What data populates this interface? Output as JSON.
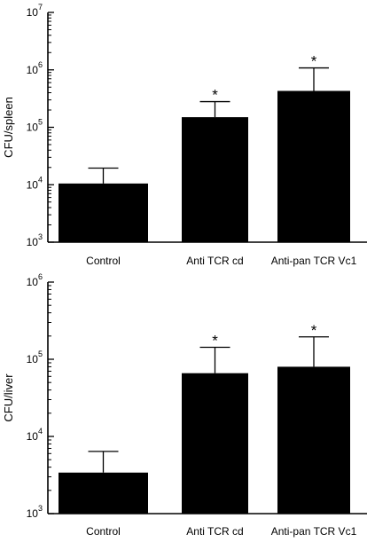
{
  "chart_data": [
    {
      "type": "bar",
      "title": "",
      "xlabel": "",
      "ylabel": "CFU/spleen",
      "yscale": "log",
      "ylim": [
        1000,
        10000000
      ],
      "yticks": [
        {
          "value": 1000,
          "base": "10",
          "exp": "3"
        },
        {
          "value": 10000,
          "base": "10",
          "exp": "4"
        },
        {
          "value": 100000,
          "base": "10",
          "exp": "5"
        },
        {
          "value": 1000000,
          "base": "10",
          "exp": "6"
        },
        {
          "value": 10000000,
          "base": "10",
          "exp": "7"
        }
      ],
      "categories": [
        "Control",
        "Anti TCR cd",
        "Anti-pan TCR Vc1"
      ],
      "values": [
        10500,
        150000,
        430000
      ],
      "error_upper": [
        19500,
        280000,
        1080000
      ],
      "significance": [
        "",
        "*",
        "*"
      ],
      "bar_color": "#000000",
      "grid": false
    },
    {
      "type": "bar",
      "title": "",
      "xlabel": "",
      "ylabel": "CFU/liver",
      "yscale": "log",
      "ylim": [
        1000,
        1000000
      ],
      "yticks": [
        {
          "value": 1000,
          "base": "10",
          "exp": "3"
        },
        {
          "value": 10000,
          "base": "10",
          "exp": "4"
        },
        {
          "value": 100000,
          "base": "10",
          "exp": "5"
        },
        {
          "value": 1000000,
          "base": "10",
          "exp": "6"
        }
      ],
      "categories": [
        "Control",
        "Anti TCR cd",
        "Anti-pan TCR Vc1"
      ],
      "values": [
        3400,
        66000,
        80000
      ],
      "error_upper": [
        6400,
        143000,
        195000
      ],
      "significance": [
        "",
        "*",
        "*"
      ],
      "bar_color": "#000000",
      "grid": false
    }
  ]
}
